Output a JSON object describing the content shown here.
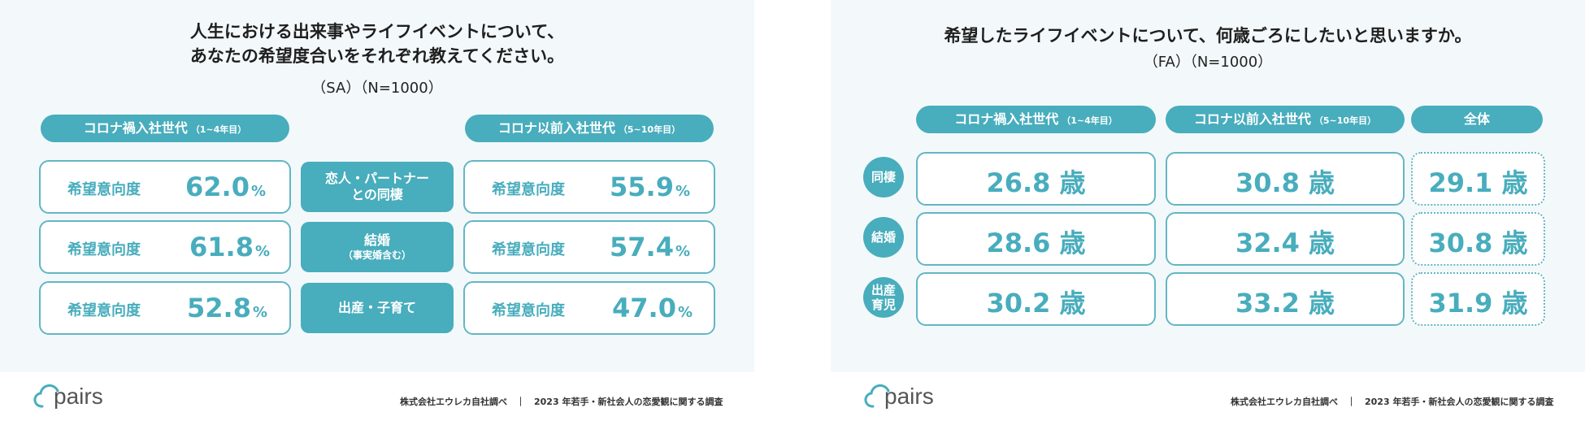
{
  "chart_data": [
    {
      "type": "table",
      "title_lines": [
        "人生における出来事やライフイベントについて、",
        "あなたの希望度合いをそれぞれ教えてください。"
      ],
      "subtitle": "（SA）（N=1000）",
      "groups": [
        {
          "label": "コロナ禍入社世代",
          "sub": "（1~4年目）"
        },
        {
          "label": "コロナ以前入社世代",
          "sub": "（5~10年目）"
        }
      ],
      "row_label": "希望意向度",
      "unit": "%",
      "events": [
        {
          "lines": [
            "恋人・パートナー",
            "との同棲"
          ]
        },
        {
          "lines": [
            "結婚",
            "（事実婚含む）"
          ]
        },
        {
          "lines": [
            "出産・子育て"
          ]
        }
      ],
      "values": [
        {
          "corona": "62.0",
          "pre_corona": "55.9"
        },
        {
          "corona": "61.8",
          "pre_corona": "57.4"
        },
        {
          "corona": "52.8",
          "pre_corona": "47.0"
        }
      ]
    },
    {
      "type": "table",
      "title": "希望したライフイベントについて、何歳ごろにしたいと思いますか。",
      "subtitle": "（FA）（N=1000）",
      "columns": [
        {
          "label": "コロナ禍入社世代",
          "sub": "（1~4年目）"
        },
        {
          "label": "コロナ以前入社世代",
          "sub": "（5~10年目）"
        },
        {
          "label": "全体",
          "sub": ""
        }
      ],
      "unit": "歳",
      "rows": [
        {
          "lines": [
            "同棲"
          ],
          "values": [
            "26.8",
            "30.8",
            "29.1"
          ]
        },
        {
          "lines": [
            "結婚"
          ],
          "values": [
            "28.6",
            "32.4",
            "30.8"
          ]
        },
        {
          "lines": [
            "出産",
            "育児"
          ],
          "values": [
            "30.2",
            "33.2",
            "31.9"
          ]
        }
      ]
    }
  ],
  "footer": {
    "logo_text": "pairs",
    "source": "株式会社エウレカ自社調べ　｜　2023 年若手・新社会人の恋愛観に関する調査"
  },
  "colors": {
    "accent": "#48adbd",
    "panel_bg": "#f3f9fa"
  },
  "icons": {
    "logo": "cloud-icon"
  }
}
